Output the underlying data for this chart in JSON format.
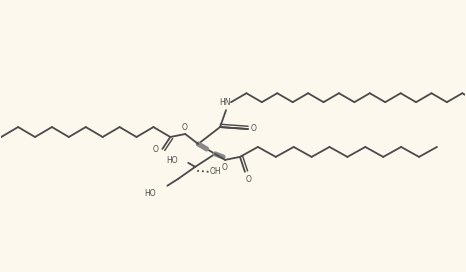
{
  "bg_color": "#fdf8ed",
  "line_color": "#4a4a4a",
  "lw": 1.3,
  "figsize": [
    4.66,
    2.72
  ],
  "dpi": 100,
  "xlim": [
    0,
    46.6
  ],
  "ylim": [
    0,
    27.2
  ]
}
